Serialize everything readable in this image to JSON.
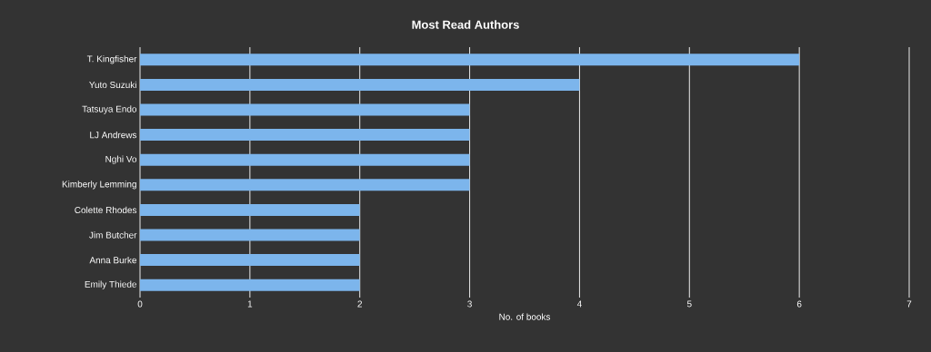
{
  "chart_data": {
    "type": "bar",
    "orientation": "horizontal",
    "title": "Most Read Authors",
    "xlabel": "No. of books",
    "categories": [
      "T. Kingfisher",
      "Yuto Suzuki",
      "Tatsuya Endo",
      "LJ Andrews",
      "Nghi Vo",
      "Kimberly Lemming",
      "Colette Rhodes",
      "Jim Butcher",
      "Anna Burke",
      "Emily Thiede"
    ],
    "values": [
      6,
      4,
      3,
      3,
      3,
      3,
      2,
      2,
      2,
      2
    ],
    "color": "#7cb5ec",
    "xlim": [
      0,
      7
    ],
    "xticks": [
      0,
      1,
      2,
      3,
      4,
      5,
      6,
      7
    ],
    "grid": "x"
  }
}
